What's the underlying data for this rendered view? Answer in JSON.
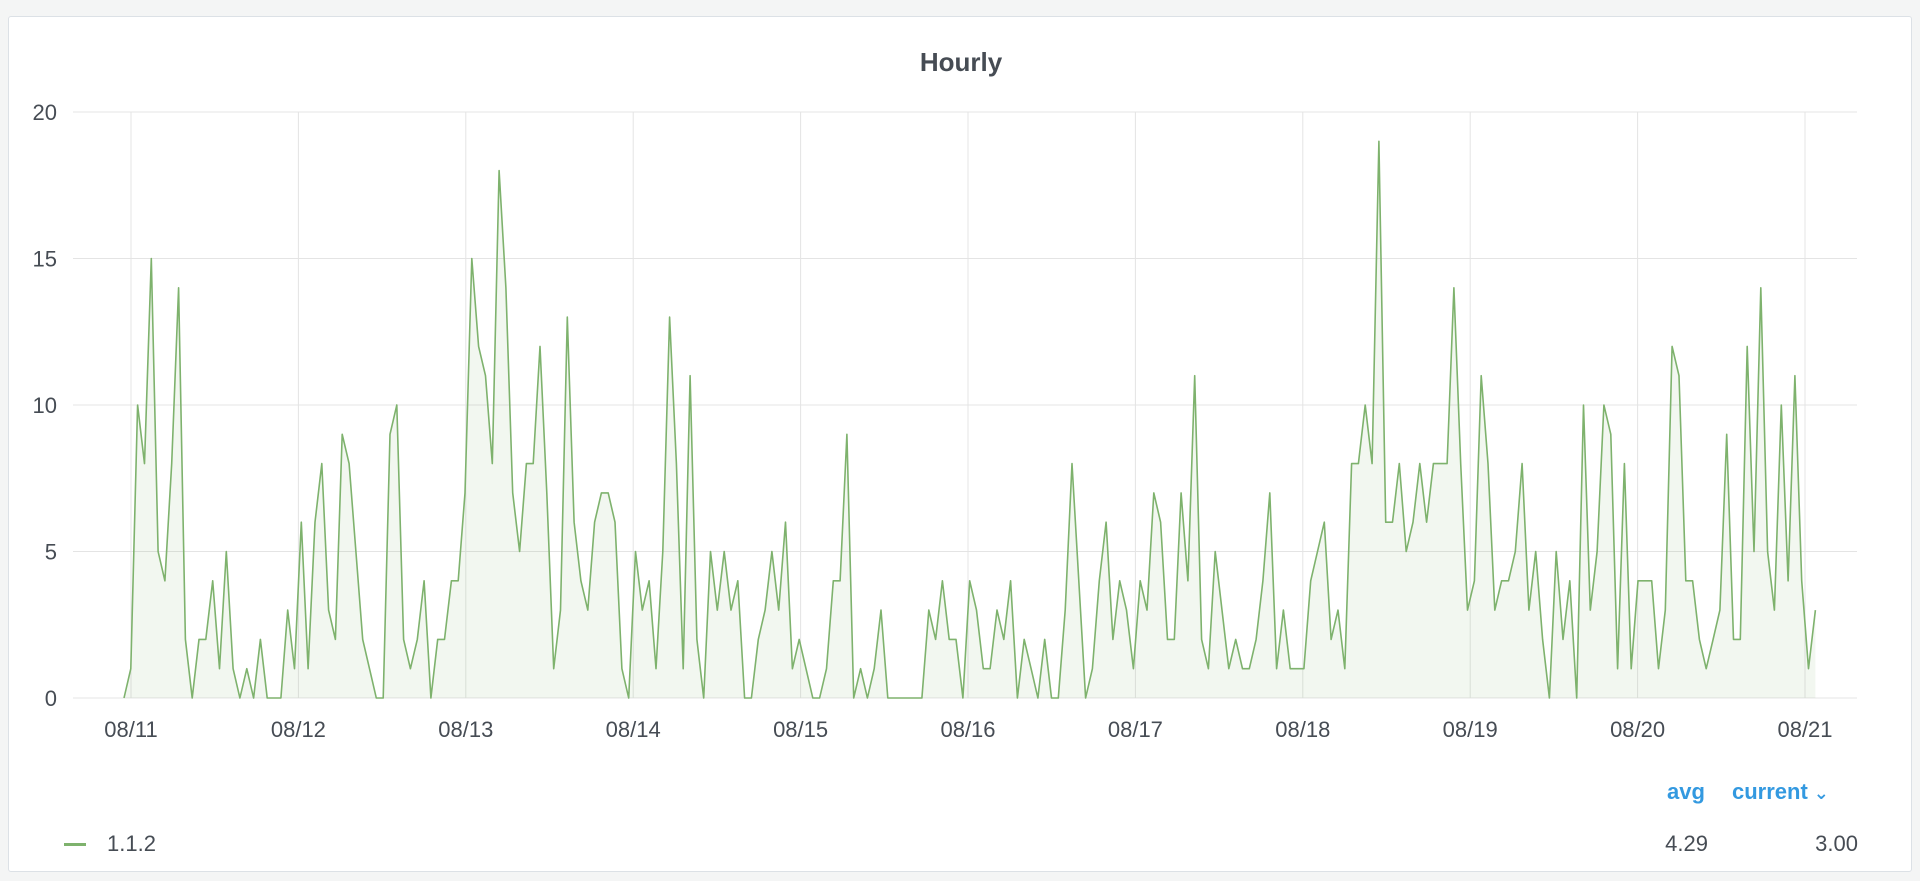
{
  "panel": {
    "title": "Hourly"
  },
  "chart_data": {
    "type": "area",
    "title": "Hourly",
    "xlabel": "",
    "ylabel": "",
    "x_ticks": [
      "08/11",
      "08/12",
      "08/13",
      "08/14",
      "08/15",
      "08/16",
      "08/17",
      "08/18",
      "08/19",
      "08/20",
      "08/21"
    ],
    "y_ticks": [
      0,
      5,
      10,
      15,
      20
    ],
    "ylim": [
      0,
      20
    ],
    "grid": true,
    "series": [
      {
        "name": "1.1.2",
        "color": "#7eb26d",
        "values": [
          0,
          1,
          10,
          8,
          15,
          5,
          4,
          8,
          14,
          2,
          0,
          2,
          2,
          4,
          1,
          5,
          1,
          0,
          1,
          0,
          2,
          0,
          0,
          0,
          3,
          1,
          6,
          1,
          6,
          8,
          3,
          2,
          9,
          8,
          5,
          2,
          1,
          0,
          0,
          9,
          10,
          2,
          1,
          2,
          4,
          0,
          2,
          2,
          4,
          4,
          7,
          15,
          12,
          11,
          8,
          18,
          14,
          7,
          5,
          8,
          8,
          12,
          7,
          1,
          3,
          13,
          6,
          4,
          3,
          6,
          7,
          7,
          6,
          1,
          0,
          5,
          3,
          4,
          1,
          5,
          13,
          8,
          1,
          11,
          2,
          0,
          5,
          3,
          5,
          3,
          4,
          0,
          0,
          2,
          3,
          5,
          3,
          6,
          1,
          2,
          1,
          0,
          0,
          1,
          4,
          4,
          9,
          0,
          1,
          0,
          1,
          3,
          0,
          0,
          0,
          0,
          0,
          0,
          3,
          2,
          4,
          2,
          2,
          0,
          4,
          3,
          1,
          1,
          3,
          2,
          4,
          0,
          2,
          1,
          0,
          2,
          0,
          0,
          3,
          8,
          4,
          0,
          1,
          4,
          6,
          2,
          4,
          3,
          1,
          4,
          3,
          7,
          6,
          2,
          2,
          7,
          4,
          11,
          2,
          1,
          5,
          3,
          1,
          2,
          1,
          1,
          2,
          4,
          7,
          1,
          3,
          1,
          1,
          1,
          4,
          5,
          6,
          2,
          3,
          1,
          8,
          8,
          10,
          8,
          19,
          6,
          6,
          8,
          5,
          6,
          8,
          6,
          8,
          8,
          8,
          14,
          8,
          3,
          4,
          11,
          8,
          3,
          4,
          4,
          5,
          8,
          3,
          5,
          2,
          0,
          5,
          2,
          4,
          0,
          10,
          3,
          5,
          10,
          9,
          1,
          8,
          1,
          4,
          4,
          4,
          1,
          3,
          12,
          11,
          4,
          4,
          2,
          1,
          2,
          3,
          9,
          2,
          2,
          12,
          5,
          14,
          5,
          3,
          10,
          4,
          11,
          4,
          1,
          3
        ]
      }
    ],
    "legend": {
      "placement": "bottom",
      "columns": [
        "avg",
        "current"
      ],
      "sort_column": "current",
      "rows": [
        {
          "name": "1.1.2",
          "avg": "4.29",
          "current": "3.00"
        }
      ]
    }
  },
  "legend": {
    "avg_label": "avg",
    "current_label": "current",
    "sort_icon": "chevron-down-icon",
    "series_name": "1.1.2",
    "avg_value": "4.29",
    "current_value": "3.00"
  }
}
